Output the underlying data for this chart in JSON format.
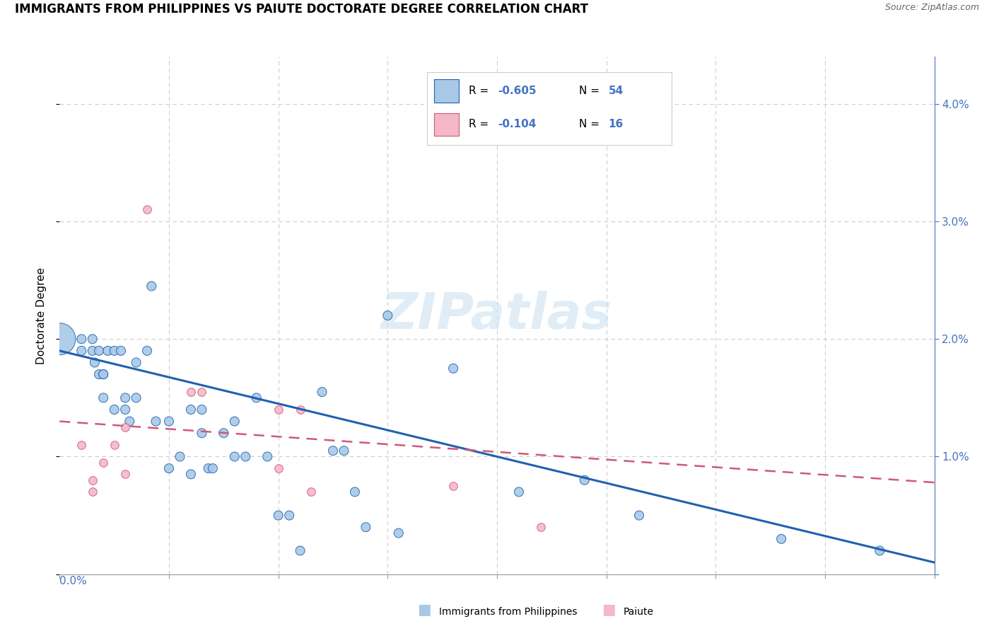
{
  "title": "IMMIGRANTS FROM PHILIPPINES VS PAIUTE DOCTORATE DEGREE CORRELATION CHART",
  "source": "Source: ZipAtlas.com",
  "ylabel": "Doctorate Degree",
  "watermark": "ZIPatlas",
  "legend1_r": "-0.605",
  "legend1_n": "54",
  "legend2_r": "-0.104",
  "legend2_n": "16",
  "color_blue": "#a8c8e8",
  "color_pink": "#f4b8c8",
  "color_blue_line": "#2060b0",
  "color_pink_line": "#d05878",
  "blue_scatter_x": [
    0.0,
    0.01,
    0.01,
    0.015,
    0.015,
    0.016,
    0.018,
    0.018,
    0.02,
    0.02,
    0.02,
    0.022,
    0.025,
    0.025,
    0.028,
    0.03,
    0.03,
    0.032,
    0.035,
    0.035,
    0.04,
    0.042,
    0.044,
    0.05,
    0.05,
    0.055,
    0.06,
    0.06,
    0.065,
    0.065,
    0.068,
    0.07,
    0.075,
    0.08,
    0.08,
    0.085,
    0.09,
    0.095,
    0.1,
    0.105,
    0.11,
    0.12,
    0.125,
    0.13,
    0.135,
    0.14,
    0.15,
    0.155,
    0.18,
    0.21,
    0.24,
    0.265,
    0.33,
    0.375
  ],
  "blue_scatter_y": [
    0.02,
    0.02,
    0.019,
    0.02,
    0.019,
    0.018,
    0.019,
    0.017,
    0.017,
    0.017,
    0.015,
    0.019,
    0.019,
    0.014,
    0.019,
    0.014,
    0.015,
    0.013,
    0.015,
    0.018,
    0.019,
    0.0245,
    0.013,
    0.013,
    0.009,
    0.01,
    0.014,
    0.0085,
    0.012,
    0.014,
    0.009,
    0.009,
    0.012,
    0.01,
    0.013,
    0.01,
    0.015,
    0.01,
    0.005,
    0.005,
    0.002,
    0.0155,
    0.0105,
    0.0105,
    0.007,
    0.004,
    0.022,
    0.0035,
    0.0175,
    0.007,
    0.008,
    0.005,
    0.003,
    0.002
  ],
  "blue_scatter_size": [
    300,
    25,
    25,
    25,
    25,
    25,
    25,
    25,
    25,
    25,
    25,
    25,
    25,
    25,
    25,
    25,
    25,
    25,
    25,
    25,
    25,
    25,
    25,
    25,
    25,
    25,
    25,
    25,
    25,
    25,
    25,
    25,
    25,
    25,
    25,
    25,
    25,
    25,
    25,
    25,
    25,
    25,
    25,
    25,
    25,
    25,
    25,
    25,
    25,
    25,
    25,
    25,
    25,
    25
  ],
  "pink_scatter_x": [
    0.01,
    0.015,
    0.015,
    0.02,
    0.025,
    0.03,
    0.03,
    0.04,
    0.06,
    0.065,
    0.1,
    0.1,
    0.11,
    0.115,
    0.18,
    0.22
  ],
  "pink_scatter_y": [
    0.011,
    0.008,
    0.007,
    0.0095,
    0.011,
    0.0125,
    0.0085,
    0.031,
    0.0155,
    0.0155,
    0.014,
    0.009,
    0.014,
    0.007,
    0.0075,
    0.004
  ],
  "xlim": [
    0.0,
    0.4
  ],
  "ylim": [
    0.0,
    0.044
  ],
  "xticks": [
    0.0,
    0.05,
    0.1,
    0.15,
    0.2,
    0.25,
    0.3,
    0.35,
    0.4
  ],
  "yticks": [
    0.0,
    0.01,
    0.02,
    0.03,
    0.04
  ],
  "blue_line_x": [
    0.0,
    0.4
  ],
  "blue_line_y": [
    0.019,
    0.001
  ],
  "pink_line_x": [
    0.0,
    0.4
  ],
  "pink_line_y": [
    0.013,
    0.0078
  ]
}
